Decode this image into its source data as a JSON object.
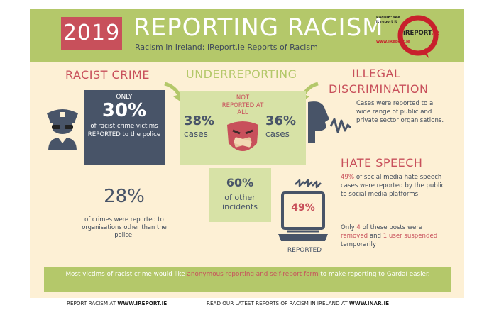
{
  "header": {
    "year": "2019",
    "title": "REPORTING RACISM",
    "subtitle": "Racism in Ireland: iReport.ie Reports of Racism"
  },
  "logo": {
    "tagline": "Racism: see it report it",
    "url": "www.iReport.ie",
    "brand": "iREPORT",
    "brand_suffix": ".ie"
  },
  "racist_crime": {
    "heading": "RACIST CRIME",
    "only": "ONLY",
    "percent": "30%",
    "description": "of racist crime victims REPORTED to the police",
    "other_percent": "28%",
    "other_description": "of crimes were reported to organisations other than the police."
  },
  "underreporting": {
    "heading": "UNDERREPORTING",
    "not_reported": "NOT REPORTED AT ALL",
    "left_percent": "38%",
    "left_label": "cases",
    "right_percent": "36%",
    "right_label": "cases",
    "other_percent": "60%",
    "other_label": "of other incidents"
  },
  "illegal_discrimination": {
    "heading_line1": "ILLEGAL",
    "heading_line2": "DISCRIMINATION",
    "description": "Cases were reported to a wide range of public and private sector organisations."
  },
  "hate_speech": {
    "heading": "HATE SPEECH",
    "percent": "49%",
    "description": "of social media hate speech cases were reported by the public to social media platforms.",
    "laptop_percent": "49%",
    "laptop_label": "REPORTED",
    "only_prefix": "Only",
    "only_count": "4",
    "only_mid": "of these posts were",
    "removed": "removed",
    "and": "and",
    "suspended": "1 user suspended",
    "temporarily": "temporarily"
  },
  "footer": {
    "text_before": "Most victims of racist crime would like",
    "highlight": "anonymous reporting and self-report form",
    "text_after": "to make reporting to Gardaí easier.",
    "link1_prefix": "REPORT RACISM AT",
    "link1_url": "WWW.IREPORT.IE",
    "link2_prefix": "READ OUR LATEST REPORTS OF RACISM IN IRELAND AT",
    "link2_url": "WWW.INAR.IE"
  },
  "colors": {
    "cream": "#fdf0d5",
    "green": "#b4c86a",
    "pale_green": "#d7e2a6",
    "red": "#c8505b",
    "slate": "#485468"
  },
  "icons": [
    "police-officer-icon",
    "gagged-face-icon",
    "shouting-head-icon",
    "laptop-icon",
    "alarm-lines-icon",
    "arrow-icon"
  ]
}
